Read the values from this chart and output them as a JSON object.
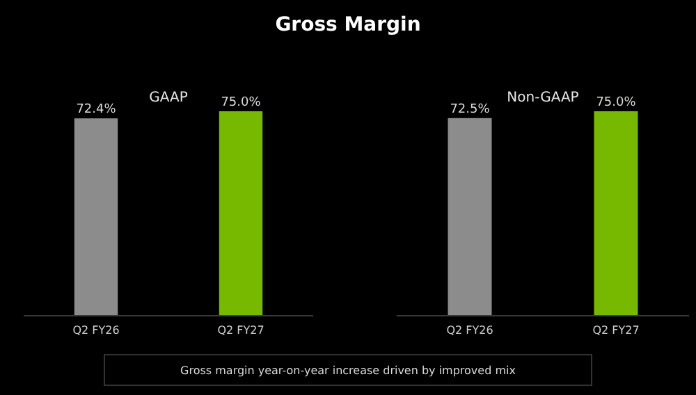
{
  "chart_data": [
    {
      "type": "bar",
      "title": "Gross Margin",
      "subtitle": "GAAP",
      "categories": [
        "Q2 FY26",
        "Q2 FY27"
      ],
      "values": [
        72.4,
        75.0
      ],
      "colors": [
        "#8c8c8c",
        "#76b900"
      ],
      "value_labels": [
        "72.4%",
        "75.0%"
      ],
      "tick_labels": "x",
      "annotations": [
        "Gross margin year-on-year increase driven by improved mix"
      ]
    },
    {
      "type": "bar",
      "subtitle": "Non-GAAP",
      "categories": [
        "Q2 FY26",
        "Q2 FY27"
      ],
      "values": [
        72.5,
        75.0
      ],
      "colors": [
        "#8c8c8c",
        "#76b900"
      ],
      "value_labels": [
        "72.5%",
        "75.0%"
      ],
      "tick_labels": "x"
    }
  ]
}
